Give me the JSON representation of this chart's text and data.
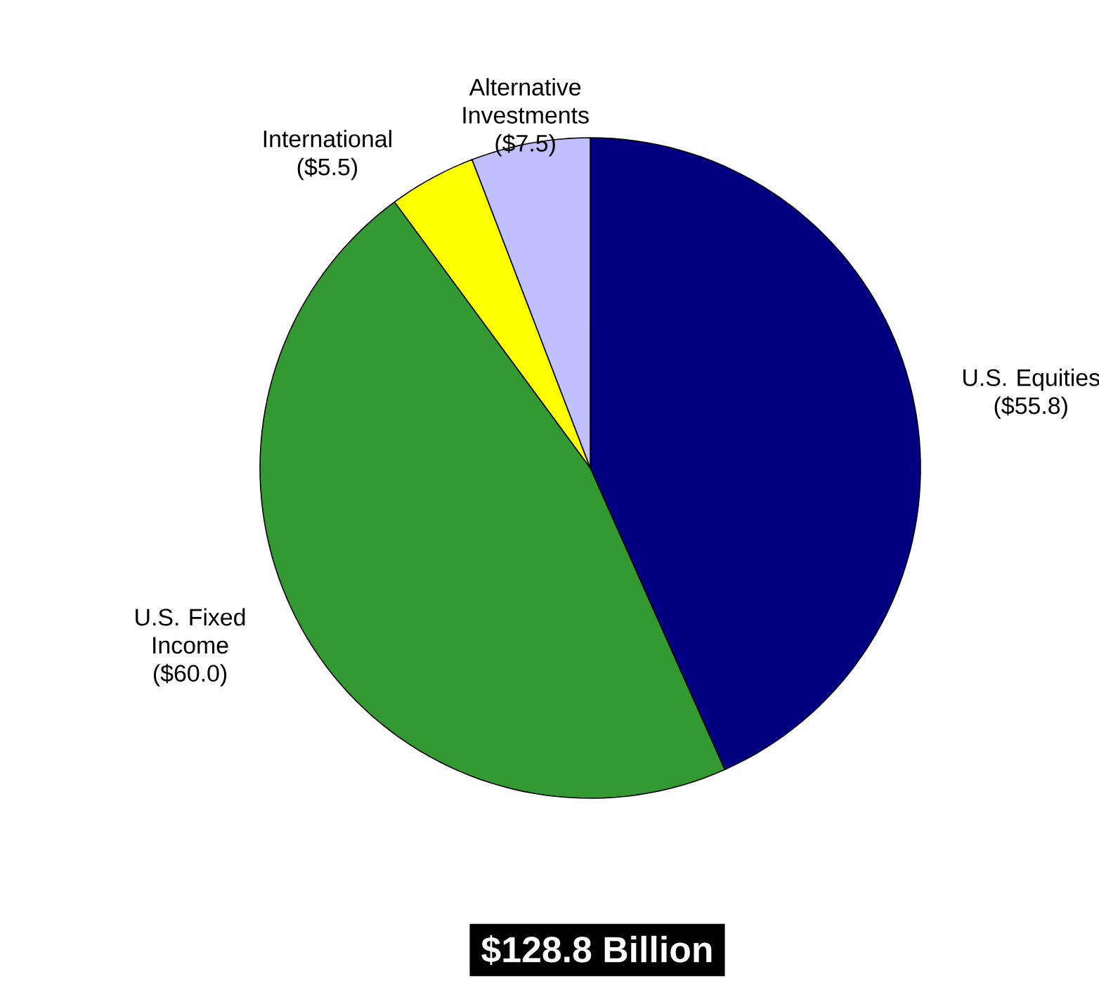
{
  "chart_data": {
    "type": "pie",
    "categories": [
      "U.S. Equities",
      "U.S. Fixed Income",
      "International",
      "Alternative Investments"
    ],
    "values": [
      55.8,
      60.0,
      5.5,
      7.5
    ],
    "value_labels": [
      "($55.8)",
      "($60.0)",
      "($5.5)",
      "($7.5)"
    ],
    "colors": [
      "#000080",
      "#339933",
      "#ffff00",
      "#c0c0ff"
    ],
    "annotations": [
      "$128.8 Billion"
    ]
  }
}
